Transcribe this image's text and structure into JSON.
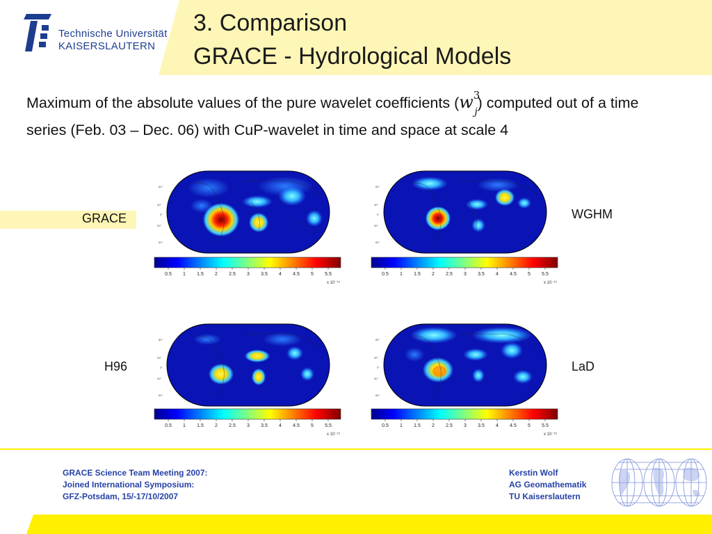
{
  "header": {
    "university_line1": "Technische Universität",
    "university_line2": "KAISERSLAUTERN",
    "title_line1": "3. Comparison",
    "title_line2": "GRACE - Hydrological Models"
  },
  "description": {
    "text_before": "Maximum of the absolute values of the pure wavelet coefficients (",
    "math_symbol": "w",
    "math_sup": "3",
    "math_sub": "j",
    "text_after": ") computed out of a time series (Feb. 03 – Dec. 06) with CuP-wavelet in time and space at scale 4"
  },
  "panels": [
    {
      "label": "GRACE"
    },
    {
      "label": "WGHM"
    },
    {
      "label": "H96"
    },
    {
      "label": "LaD"
    }
  ],
  "colorbar": {
    "ticks": [
      "0.5",
      "1",
      "1.5",
      "2",
      "2.5",
      "3",
      "3.5",
      "4",
      "4.5",
      "5",
      "5.5"
    ],
    "multiplier": "x 10⁻¹⁵"
  },
  "footer": {
    "left": [
      "GRACE Science Team Meeting 2007:",
      "Joined International Symposium:",
      "GFZ-Potsdam, 15/-17/10/2007"
    ],
    "right": [
      "Kerstin Wolf",
      "AG Geomathematik",
      "TU Kaiserslautern"
    ]
  },
  "colors": {
    "accent_yellow": "#fff000",
    "light_yellow": "#fef6b6",
    "brand_blue": "#1d3d8f",
    "footer_blue": "#2541a6"
  },
  "icons": {
    "logo": "tu-kaiserslautern-logo-icon",
    "globe": "globe-wireframe-icon"
  }
}
